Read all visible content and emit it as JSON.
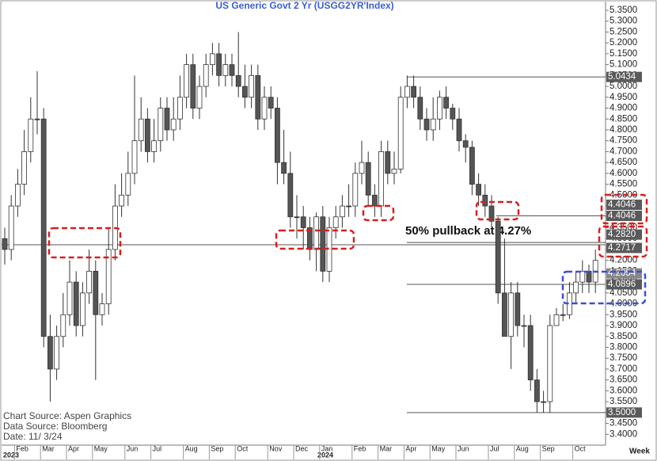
{
  "chart_data": {
    "type": "candlestick",
    "title": "US Generic Govt 2 Yr (USGG2YR'Index)",
    "open": [
      4.3,
      4.25,
      4.45,
      4.55,
      4.7,
      4.85,
      4.85,
      3.85,
      3.7,
      3.85,
      3.95,
      4.1,
      3.9,
      4.05,
      4.15,
      3.95,
      4.0,
      4.25,
      4.45,
      4.5,
      4.6,
      4.75,
      4.85,
      4.7,
      4.75,
      4.9,
      4.8,
      4.85,
      4.95,
      5.1,
      4.9,
      5.0,
      5.1,
      5.15,
      5.05,
      5.1,
      5.05,
      5.0,
      4.95,
      5.05,
      4.85,
      4.95,
      4.9,
      4.65,
      4.6,
      4.4,
      4.4,
      4.35,
      4.25,
      4.4,
      4.15,
      4.35,
      4.4,
      4.45,
      4.45,
      4.6,
      4.65,
      4.5,
      4.45,
      4.7,
      4.6,
      4.62,
      4.95,
      5.0,
      4.95,
      4.85,
      4.8,
      4.85,
      4.95,
      4.9,
      4.85,
      4.75,
      4.72,
      4.55,
      4.5,
      4.45,
      4.38,
      4.05,
      3.85,
      4.05,
      3.9,
      3.9,
      3.65,
      3.55,
      3.55,
      3.9,
      3.95,
      3.95,
      4.05,
      4.1,
      4.15,
      4.1
    ],
    "high": [
      4.35,
      4.5,
      4.62,
      4.8,
      4.95,
      5.07,
      4.9,
      3.95,
      3.9,
      4.05,
      4.2,
      4.15,
      4.1,
      4.25,
      4.2,
      4.05,
      4.35,
      4.55,
      4.6,
      4.7,
      5.05,
      4.95,
      4.9,
      4.85,
      4.95,
      4.95,
      4.95,
      5.05,
      5.15,
      5.15,
      5.05,
      5.15,
      5.2,
      5.2,
      5.15,
      5.15,
      5.25,
      5.1,
      5.1,
      5.1,
      5.0,
      5.0,
      4.95,
      4.8,
      4.7,
      4.5,
      4.45,
      4.4,
      4.42,
      4.45,
      4.4,
      4.45,
      4.5,
      4.55,
      4.65,
      4.75,
      4.7,
      4.55,
      4.75,
      4.75,
      4.7,
      5.0,
      5.05,
      5.05,
      5.0,
      4.9,
      4.95,
      4.98,
      5.0,
      4.92,
      4.9,
      4.78,
      4.75,
      4.6,
      4.55,
      4.5,
      4.4,
      4.3,
      4.1,
      4.1,
      3.95,
      3.95,
      3.7,
      3.6,
      3.95,
      3.98,
      4.0,
      4.1,
      4.15,
      4.2,
      4.18,
      4.25
    ],
    "low": [
      4.18,
      4.2,
      4.4,
      4.5,
      4.65,
      4.78,
      3.8,
      3.55,
      3.65,
      3.8,
      3.9,
      3.85,
      3.85,
      4.0,
      3.65,
      3.9,
      3.95,
      4.2,
      4.4,
      4.45,
      4.55,
      4.7,
      4.65,
      4.65,
      4.7,
      4.75,
      4.75,
      4.8,
      4.9,
      4.85,
      4.85,
      4.95,
      5.05,
      5.0,
      5.0,
      5.0,
      4.95,
      4.9,
      4.9,
      4.8,
      4.8,
      4.85,
      4.55,
      4.55,
      4.35,
      4.3,
      4.25,
      4.2,
      4.15,
      4.1,
      4.1,
      4.3,
      4.35,
      4.4,
      4.4,
      4.55,
      4.45,
      4.4,
      4.4,
      4.55,
      4.55,
      4.6,
      4.9,
      4.9,
      4.8,
      4.75,
      4.75,
      4.8,
      4.85,
      4.8,
      4.7,
      4.65,
      4.5,
      4.45,
      4.4,
      4.35,
      4.0,
      3.85,
      3.7,
      3.85,
      3.8,
      3.6,
      3.5,
      3.5,
      3.5,
      3.9,
      3.92,
      3.93,
      4.0,
      4.05,
      4.05,
      4.05
    ],
    "close": [
      4.25,
      4.45,
      4.55,
      4.7,
      4.85,
      4.85,
      3.85,
      3.7,
      3.85,
      3.95,
      4.1,
      3.9,
      4.05,
      4.15,
      3.95,
      4.0,
      4.25,
      4.45,
      4.5,
      4.6,
      4.75,
      4.85,
      4.7,
      4.75,
      4.9,
      4.8,
      4.85,
      4.95,
      5.1,
      4.9,
      5.0,
      5.1,
      5.15,
      5.05,
      5.1,
      5.05,
      5.0,
      4.95,
      5.05,
      4.85,
      4.95,
      4.9,
      4.65,
      4.6,
      4.4,
      4.4,
      4.35,
      4.25,
      4.4,
      4.15,
      4.35,
      4.4,
      4.45,
      4.45,
      4.6,
      4.65,
      4.5,
      4.45,
      4.7,
      4.6,
      4.62,
      4.95,
      5.0,
      4.95,
      4.85,
      4.8,
      4.85,
      4.95,
      4.9,
      4.85,
      4.75,
      4.72,
      4.55,
      4.5,
      4.45,
      4.38,
      4.05,
      3.85,
      4.05,
      3.9,
      3.9,
      3.65,
      3.55,
      3.55,
      3.9,
      3.95,
      3.95,
      4.05,
      4.1,
      4.15,
      4.1,
      4.2
    ],
    "up_color": "#ffffff",
    "down_color": "#555555",
    "ylim": [
      3.35,
      5.39
    ],
    "yticks": [
      {
        "value": 5.35,
        "label": "5.3500"
      },
      {
        "value": 5.3,
        "label": "5.3000"
      },
      {
        "value": 5.25,
        "label": "5.2500"
      },
      {
        "value": 5.2,
        "label": "5.2000"
      },
      {
        "value": 5.15,
        "label": "5.1500"
      },
      {
        "value": 5.1,
        "label": "5.1000"
      },
      {
        "value": 5.05,
        "label": "5.0500"
      },
      {
        "value": 5,
        "label": "5.0000"
      },
      {
        "value": 4.95,
        "label": "4.9500"
      },
      {
        "value": 4.9,
        "label": "4.9000"
      },
      {
        "value": 4.85,
        "label": "4.8500"
      },
      {
        "value": 4.8,
        "label": "4.8000"
      },
      {
        "value": 4.75,
        "label": "4.7500"
      },
      {
        "value": 4.7,
        "label": "4.7000"
      },
      {
        "value": 4.65,
        "label": "4.6500"
      },
      {
        "value": 4.6,
        "label": "4.6000"
      },
      {
        "value": 4.55,
        "label": "4.5500"
      },
      {
        "value": 4.5,
        "label": "4.5000"
      },
      {
        "value": 4.45,
        "label": "4.4500"
      },
      {
        "value": 4.4,
        "label": "4.4000"
      },
      {
        "value": 4.35,
        "label": "4.3500"
      },
      {
        "value": 4.3,
        "label": "4.3000"
      },
      {
        "value": 4.25,
        "label": "4.2500"
      },
      {
        "value": 4.2,
        "label": "4.2000"
      },
      {
        "value": 4.15,
        "label": "4.1500"
      },
      {
        "value": 4.1,
        "label": "4.1000"
      },
      {
        "value": 4.05,
        "label": "4.0500"
      },
      {
        "value": 4,
        "label": "4.0000"
      },
      {
        "value": 3.95,
        "label": "3.9500"
      },
      {
        "value": 3.9,
        "label": "3.9000"
      },
      {
        "value": 3.85,
        "label": "3.8500"
      },
      {
        "value": 3.8,
        "label": "3.8000"
      },
      {
        "value": 3.75,
        "label": "3.7500"
      },
      {
        "value": 3.7,
        "label": "3.7000"
      },
      {
        "value": 3.65,
        "label": "3.6500"
      },
      {
        "value": 3.6,
        "label": "3.6000"
      },
      {
        "value": 3.55,
        "label": "3.5500"
      },
      {
        "value": 3.5,
        "label": "3.5000"
      },
      {
        "value": 3.45,
        "label": "3.4500"
      },
      {
        "value": 3.4,
        "label": "3.4000"
      }
    ],
    "xticks": [
      {
        "value": 2,
        "label": "Feb"
      },
      {
        "value": 6,
        "label": "Mar"
      },
      {
        "value": 10,
        "label": "Apr"
      },
      {
        "value": 14,
        "label": "May"
      },
      {
        "value": 19,
        "label": "Jun"
      },
      {
        "value": 23,
        "label": "Jul"
      },
      {
        "value": 28,
        "label": "Aug"
      },
      {
        "value": 32,
        "label": "Sep"
      },
      {
        "value": 36,
        "label": "Oct"
      },
      {
        "value": 41,
        "label": "Nov"
      },
      {
        "value": 45,
        "label": "Dec"
      },
      {
        "value": 49,
        "label": "Jan"
      },
      {
        "value": 54,
        "label": "Feb"
      },
      {
        "value": 58,
        "label": "Mar"
      },
      {
        "value": 62,
        "label": "Apr"
      },
      {
        "value": 66,
        "label": "May"
      },
      {
        "value": 70,
        "label": "Jun"
      },
      {
        "value": 75,
        "label": "Jul"
      },
      {
        "value": 79,
        "label": "Aug"
      },
      {
        "value": 83,
        "label": "Sep"
      },
      {
        "value": 88,
        "label": "Oct"
      }
    ],
    "years": [
      "2023",
      "2024"
    ],
    "xlabel": "Week",
    "levels": [
      5.0434,
      4.4046,
      4.4046,
      {
        "value": 4.282,
        "label": "4.2820"
      },
      4.2717,
      4.2054,
      4.0896,
      {
        "value": 3.5,
        "label": "3.5000"
      }
    ],
    "annotation": "50% pullback at 4.27%",
    "notes": [
      "Chart Source: Aspen Graphics",
      "Data Source: Bloomberg",
      "Date: 11/ 3/24"
    ]
  }
}
